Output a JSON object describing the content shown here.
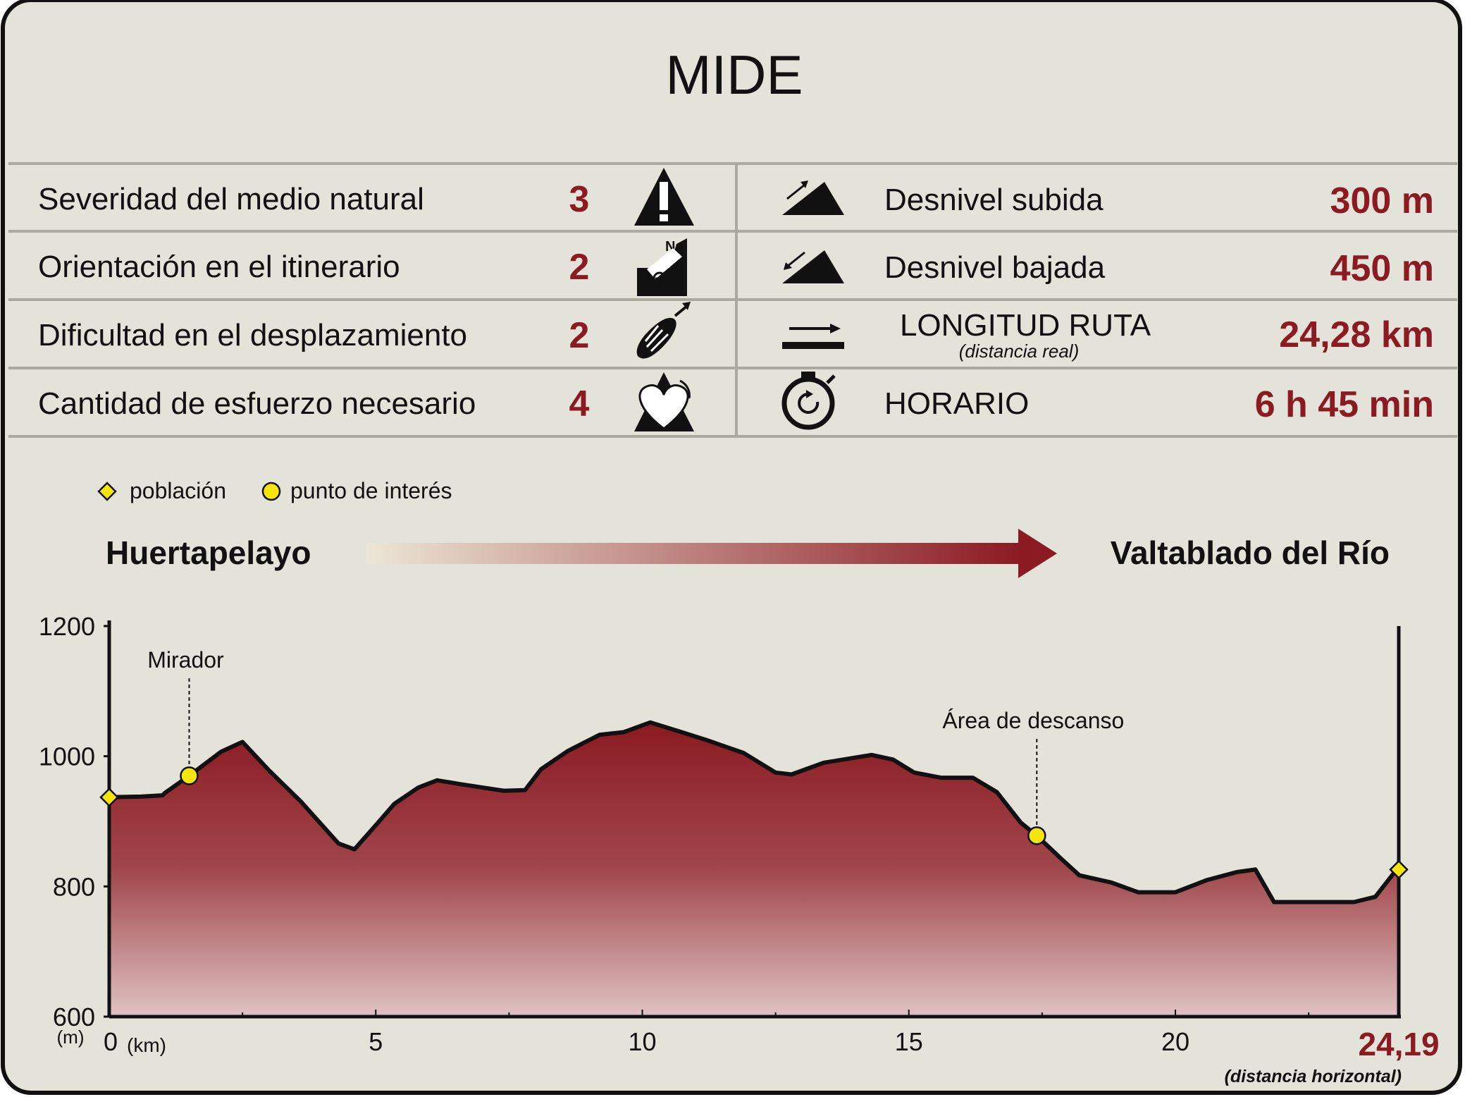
{
  "title": "MIDE",
  "mide": [
    {
      "label": "Severidad del medio natural",
      "value": "3",
      "icon": "alert-mountain-icon"
    },
    {
      "label": "Orientación en el itinerario",
      "value": "2",
      "icon": "compass-orientation-icon"
    },
    {
      "label": "Dificultad en el desplazamiento",
      "value": "2",
      "icon": "footprint-icon"
    },
    {
      "label": "Cantidad de esfuerzo necesario",
      "value": "4",
      "icon": "heart-mountain-icon"
    }
  ],
  "stats": [
    {
      "label": "Desnivel subida",
      "sublabel": "",
      "value": "300 m",
      "icon": "ascent-icon"
    },
    {
      "label": "Desnivel bajada",
      "sublabel": "",
      "value": "450 m",
      "icon": "descent-icon"
    },
    {
      "label": "LONGITUD RUTA",
      "sublabel": "(distancia real)",
      "value": "24,28 km",
      "icon": "distance-icon"
    },
    {
      "label": "HORARIO",
      "sublabel": "",
      "value": "6 h 45 min",
      "icon": "stopwatch-icon"
    }
  ],
  "legend": {
    "town": "población",
    "poi": "punto de interés"
  },
  "route": {
    "start": "Huertapelayo",
    "end": "Valtablado del Río"
  },
  "colors": {
    "background": "#e3e3d9",
    "accent": "#8b1a22",
    "marker": "#f5e50a",
    "line": "#111111"
  },
  "chart_data": {
    "type": "area",
    "xlabel": "(km)",
    "ylabel": "(m)",
    "xlim": [
      0,
      24.19
    ],
    "ylim": [
      600,
      1200
    ],
    "xticks": [
      0,
      5,
      10,
      15,
      20
    ],
    "yticks": [
      600,
      800,
      1000,
      1200
    ],
    "x_end_label": "24,19",
    "x_end_note": "(distancia horizontal)",
    "profile": [
      [
        0,
        937
      ],
      [
        0.6,
        938
      ],
      [
        1.0,
        940
      ],
      [
        1.05,
        944
      ],
      [
        1.5,
        970
      ],
      [
        2.1,
        1007
      ],
      [
        2.5,
        1022
      ],
      [
        3.0,
        978
      ],
      [
        3.6,
        930
      ],
      [
        4.3,
        866
      ],
      [
        4.6,
        857
      ],
      [
        5.0,
        894
      ],
      [
        5.35,
        927
      ],
      [
        5.8,
        952
      ],
      [
        6.15,
        963
      ],
      [
        6.6,
        957
      ],
      [
        7.4,
        947
      ],
      [
        7.8,
        948
      ],
      [
        8.1,
        980
      ],
      [
        8.6,
        1008
      ],
      [
        9.2,
        1033
      ],
      [
        9.65,
        1037
      ],
      [
        10.15,
        1052
      ],
      [
        10.7,
        1038
      ],
      [
        11.2,
        1025
      ],
      [
        11.9,
        1005
      ],
      [
        12.5,
        975
      ],
      [
        12.8,
        972
      ],
      [
        13.4,
        990
      ],
      [
        14.3,
        1002
      ],
      [
        14.7,
        995
      ],
      [
        15.1,
        975
      ],
      [
        15.6,
        967
      ],
      [
        16.2,
        967
      ],
      [
        16.65,
        945
      ],
      [
        17.1,
        898
      ],
      [
        17.4,
        878
      ],
      [
        17.85,
        843
      ],
      [
        18.2,
        817
      ],
      [
        18.8,
        806
      ],
      [
        19.3,
        791
      ],
      [
        20.0,
        791
      ],
      [
        20.6,
        810
      ],
      [
        21.15,
        822
      ],
      [
        21.5,
        826
      ],
      [
        21.85,
        776
      ],
      [
        22.3,
        776
      ],
      [
        23.35,
        776
      ],
      [
        23.75,
        784
      ],
      [
        24.15,
        826
      ],
      [
        24.19,
        826
      ]
    ],
    "markers": [
      {
        "type": "town",
        "x": 0,
        "y": 937
      },
      {
        "type": "poi",
        "x": 1.5,
        "y": 970,
        "label": "Mirador"
      },
      {
        "type": "poi",
        "x": 17.4,
        "y": 878,
        "label": "Área de descanso"
      },
      {
        "type": "town",
        "x": 24.19,
        "y": 826
      }
    ]
  }
}
